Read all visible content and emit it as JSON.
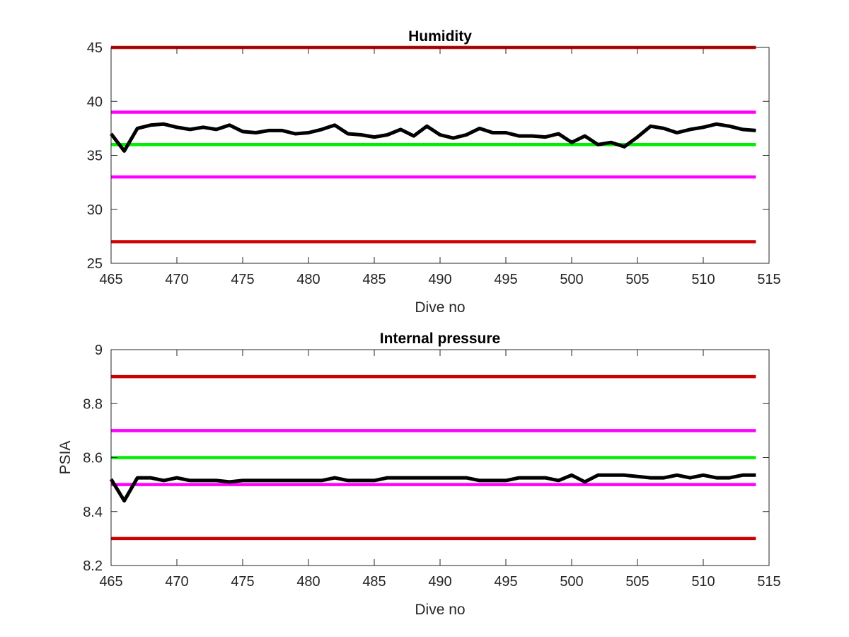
{
  "chart_data": [
    {
      "type": "line",
      "title": "Humidity",
      "xlabel": "Dive no",
      "ylabel": "",
      "xlim": [
        465,
        515
      ],
      "ylim": [
        25,
        45
      ],
      "xticks": [
        "465",
        "470",
        "475",
        "480",
        "485",
        "490",
        "495",
        "500",
        "505",
        "510",
        "515"
      ],
      "yticks": [
        "25",
        "30",
        "35",
        "40",
        "45"
      ],
      "grid": false,
      "reference_lines": [
        {
          "y": 45,
          "color": "#cc0000"
        },
        {
          "y": 39,
          "color": "#ff00ff"
        },
        {
          "y": 36,
          "color": "#00ee00"
        },
        {
          "y": 33,
          "color": "#ff00ff"
        },
        {
          "y": 27,
          "color": "#cc0000"
        }
      ],
      "series": [
        {
          "color": "#000000",
          "x": [
            465,
            466,
            467,
            468,
            469,
            470,
            471,
            472,
            473,
            474,
            475,
            476,
            477,
            478,
            479,
            480,
            481,
            482,
            483,
            484,
            485,
            486,
            487,
            488,
            489,
            490,
            491,
            492,
            493,
            494,
            495,
            496,
            497,
            498,
            499,
            500,
            501,
            502,
            503,
            504,
            505,
            506,
            507,
            508,
            509,
            510,
            511,
            512,
            513,
            514
          ],
          "values": [
            37.0,
            35.4,
            37.5,
            37.8,
            37.9,
            37.6,
            37.4,
            37.6,
            37.4,
            37.8,
            37.2,
            37.1,
            37.3,
            37.3,
            37.0,
            37.1,
            37.4,
            37.8,
            37.0,
            36.9,
            36.7,
            36.9,
            37.4,
            36.8,
            37.7,
            36.9,
            36.6,
            36.9,
            37.5,
            37.1,
            37.1,
            36.8,
            36.8,
            36.7,
            37.0,
            36.2,
            36.8,
            36.0,
            36.2,
            35.8,
            36.7,
            37.7,
            37.5,
            37.1,
            37.4,
            37.6,
            37.9,
            37.7,
            37.4,
            37.3
          ]
        }
      ]
    },
    {
      "type": "line",
      "title": "Internal pressure",
      "xlabel": "Dive no",
      "ylabel": "PSIA",
      "xlim": [
        465,
        515
      ],
      "ylim": [
        8.2,
        9
      ],
      "xticks": [
        "465",
        "470",
        "475",
        "480",
        "485",
        "490",
        "495",
        "500",
        "505",
        "510",
        "515"
      ],
      "yticks": [
        "8.2",
        "8.4",
        "8.6",
        "8.8",
        "9"
      ],
      "grid": false,
      "reference_lines": [
        {
          "y": 8.9,
          "color": "#cc0000"
        },
        {
          "y": 8.7,
          "color": "#ff00ff"
        },
        {
          "y": 8.6,
          "color": "#00ee00"
        },
        {
          "y": 8.5,
          "color": "#ff00ff"
        },
        {
          "y": 8.3,
          "color": "#cc0000"
        }
      ],
      "series": [
        {
          "color": "#000000",
          "x": [
            465,
            466,
            467,
            468,
            469,
            470,
            471,
            472,
            473,
            474,
            475,
            476,
            477,
            478,
            479,
            480,
            481,
            482,
            483,
            484,
            485,
            486,
            487,
            488,
            489,
            490,
            491,
            492,
            493,
            494,
            495,
            496,
            497,
            498,
            499,
            500,
            501,
            502,
            503,
            504,
            505,
            506,
            507,
            508,
            509,
            510,
            511,
            512,
            513,
            514
          ],
          "values": [
            8.52,
            8.44,
            8.525,
            8.525,
            8.515,
            8.525,
            8.515,
            8.515,
            8.515,
            8.51,
            8.515,
            8.515,
            8.515,
            8.515,
            8.515,
            8.515,
            8.515,
            8.525,
            8.515,
            8.515,
            8.515,
            8.525,
            8.525,
            8.525,
            8.525,
            8.525,
            8.525,
            8.525,
            8.515,
            8.515,
            8.515,
            8.525,
            8.525,
            8.525,
            8.515,
            8.535,
            8.51,
            8.535,
            8.535,
            8.535,
            8.53,
            8.525,
            8.525,
            8.535,
            8.525,
            8.535,
            8.525,
            8.525,
            8.535,
            8.535
          ]
        }
      ]
    }
  ]
}
